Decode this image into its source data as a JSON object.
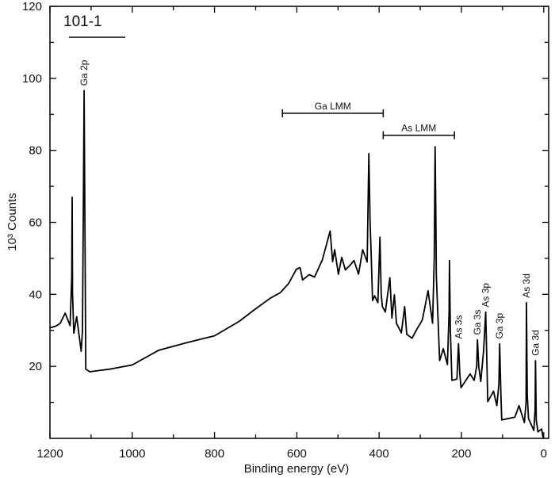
{
  "chart_data": {
    "type": "line",
    "sample_label": "101-1",
    "xlabel": "Binding energy (eV)",
    "ylabel": "10³ Counts",
    "xlim": [
      1200,
      -12
    ],
    "ylim": [
      0,
      120
    ],
    "x_reversed": true,
    "grid": false,
    "x_ticks": [
      1200,
      1000,
      800,
      600,
      400,
      200,
      0
    ],
    "y_ticks": [
      20,
      40,
      60,
      80,
      100,
      120
    ],
    "line_color": "#000000",
    "series": [
      {
        "x": [
          1200,
          1185,
          1175,
          1163,
          1151,
          1147,
          1146,
          1145,
          1142,
          1135,
          1124,
          1121,
          1119,
          1117,
          1113,
          1103,
          1050,
          1000,
          935,
          870,
          800,
          740,
          700,
          665,
          640,
          620,
          601,
          592,
          586,
          570,
          557,
          538,
          519,
          513,
          508,
          499,
          491,
          482,
          469,
          461,
          450,
          440,
          429,
          425,
          422,
          419,
          416,
          411,
          403,
          398,
          395,
          392,
          385,
          374,
          369,
          363,
          358,
          346,
          338,
          333,
          320,
          310,
          295,
          281,
          270,
          266,
          264,
          262,
          261,
          253,
          244,
          234,
          230,
          229,
          227,
          223,
          211,
          207,
          204,
          201,
          179,
          169,
          163,
          161,
          158,
          153,
          146,
          141,
          138,
          136,
          122,
          114,
          109,
          107,
          104,
          102,
          70,
          60,
          47,
          43,
          42,
          40,
          37,
          24,
          21,
          20,
          18,
          14,
          5,
          2,
          0
        ],
        "y": [
          30.7,
          31.2,
          32,
          34.8,
          31.3,
          45,
          67,
          40,
          29.2,
          33.8,
          24.2,
          30,
          60,
          96.6,
          19.2,
          18.5,
          19.3,
          20.4,
          24.5,
          26.5,
          28.5,
          32.5,
          36,
          38.9,
          40.5,
          43,
          47,
          47.4,
          44,
          45.5,
          44.8,
          49.6,
          57.6,
          49.1,
          52.4,
          45.6,
          50.3,
          46.8,
          48.3,
          49.4,
          45.6,
          52.4,
          49,
          79.1,
          60,
          50,
          38.3,
          39.6,
          37.7,
          55.9,
          40,
          36.6,
          35.1,
          44.6,
          33.4,
          39.9,
          32,
          29.3,
          36.6,
          28.9,
          27.8,
          30,
          32.9,
          41,
          32,
          50,
          81,
          60,
          45.4,
          21.6,
          24.9,
          20.5,
          35,
          49.4,
          30,
          16.1,
          16.5,
          26.3,
          18,
          14.1,
          17.9,
          16.1,
          20,
          27.4,
          20,
          15.8,
          24.5,
          35.1,
          20,
          10.2,
          13.1,
          9.1,
          15,
          26.3,
          12,
          5.1,
          5.9,
          9.1,
          4.4,
          10,
          37.7,
          12,
          5.5,
          2.2,
          8,
          21.6,
          5,
          1.8,
          2.6,
          0.5,
          0.1
        ]
      }
    ],
    "annotations": [
      {
        "text": "Ga 2p",
        "energy": 1117,
        "peak": 96.6
      },
      {
        "text": "As 3s",
        "energy": 207,
        "peak": 26.3
      },
      {
        "text": "Ga 3s",
        "energy": 161,
        "peak": 27.4
      },
      {
        "text": "As 3p",
        "energy": 141,
        "peak": 35.1
      },
      {
        "text": "Ga 3p",
        "energy": 107,
        "peak": 26.3
      },
      {
        "text": "As 3d",
        "energy": 42,
        "peak": 37.7
      },
      {
        "text": "Ga 3d",
        "energy": 20,
        "peak": 21.6
      }
    ],
    "ranges": [
      {
        "text": "Ga LMM",
        "from": 635,
        "to": 390,
        "level": 90.3
      },
      {
        "text": "As LMM",
        "from": 390,
        "to": 217,
        "level": 84.2
      }
    ]
  }
}
